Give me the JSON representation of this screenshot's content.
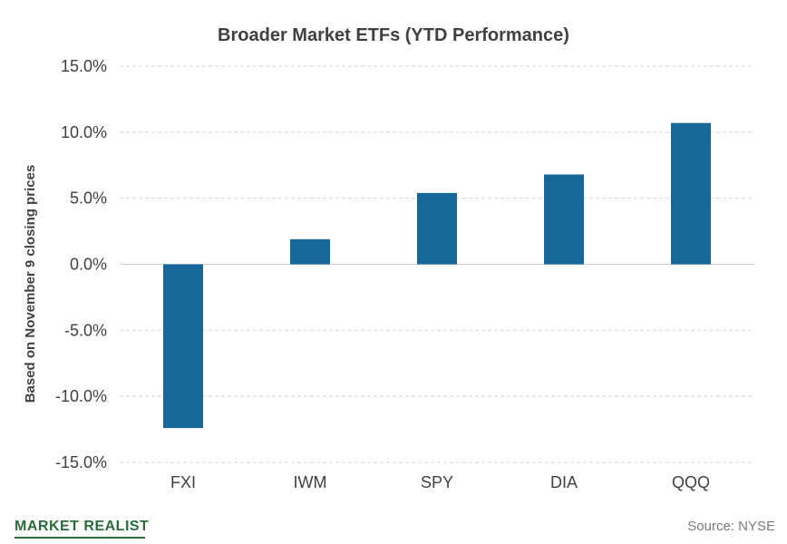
{
  "chart_data": {
    "type": "bar",
    "title": "Broader  Market  ETFs (YTD Performance)",
    "ylabel": "Based on November 9 closing prices",
    "xlabel": "",
    "categories": [
      "FXI",
      "IWM",
      "SPY",
      "DIA",
      "QQQ"
    ],
    "values": [
      -12.4,
      1.9,
      5.4,
      6.8,
      10.7
    ],
    "ylim": [
      -15,
      15
    ],
    "yticks": [
      15,
      10,
      5,
      0,
      -5,
      -10,
      -15
    ],
    "ytick_labels": [
      "15.0%",
      "10.0%",
      "5.0%",
      "0.0%",
      "-5.0%",
      "-10.0%",
      "-15.0%"
    ],
    "grid": true,
    "bar_color": "#16679a"
  },
  "footer": {
    "brand": "MARKET REALIST",
    "source": "Source: NYSE"
  },
  "colors": {
    "text": "#404040",
    "brand": "#2a6b3a",
    "grid": "#d4d4d4"
  }
}
